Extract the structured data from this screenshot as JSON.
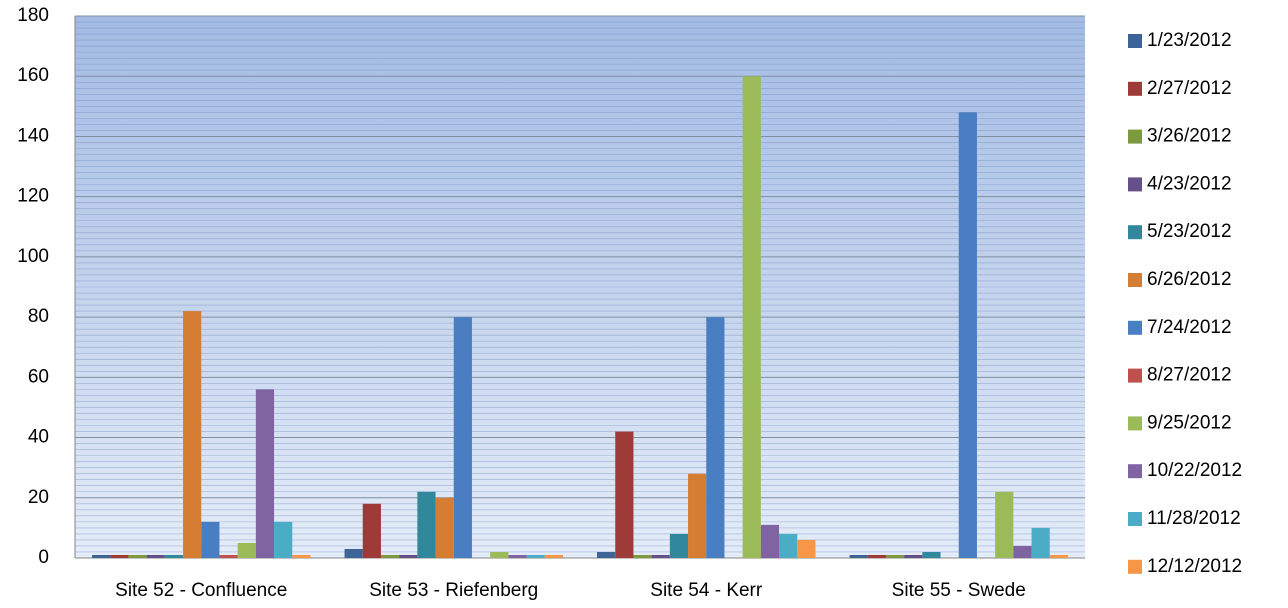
{
  "chart_data": {
    "type": "bar",
    "categories": [
      "Site 52 - Confluence",
      "Site 53 - Riefenberg",
      "Site 54 - Kerr",
      "Site 55 - Swede"
    ],
    "series": [
      {
        "name": "1/23/2012",
        "color": "#3c6496",
        "values": [
          1,
          3,
          2,
          1
        ]
      },
      {
        "name": "2/27/2012",
        "color": "#9e3b38",
        "values": [
          1,
          18,
          42,
          1
        ]
      },
      {
        "name": "3/26/2012",
        "color": "#7d9a3e",
        "values": [
          1,
          1,
          1,
          1
        ]
      },
      {
        "name": "4/23/2012",
        "color": "#66508a",
        "values": [
          1,
          1,
          1,
          1
        ]
      },
      {
        "name": "5/23/2012",
        "color": "#31889c",
        "values": [
          1,
          22,
          8,
          2
        ]
      },
      {
        "name": "6/26/2012",
        "color": "#d57d33",
        "values": [
          82,
          20,
          28,
          0
        ]
      },
      {
        "name": "7/24/2012",
        "color": "#4a7ec2",
        "values": [
          12,
          80,
          80,
          148
        ]
      },
      {
        "name": "8/27/2012",
        "color": "#c0504d",
        "values": [
          1,
          0,
          0,
          0
        ]
      },
      {
        "name": "9/25/2012",
        "color": "#9bbb59",
        "values": [
          5,
          2,
          160,
          22
        ]
      },
      {
        "name": "10/22/2012",
        "color": "#8064a2",
        "values": [
          56,
          1,
          11,
          4
        ]
      },
      {
        "name": "11/28/2012",
        "color": "#4bacc6",
        "values": [
          12,
          1,
          8,
          10
        ]
      },
      {
        "name": "12/12/2012",
        "color": "#f79646",
        "values": [
          1,
          1,
          6,
          1
        ]
      }
    ],
    "ylim": [
      0,
      180
    ],
    "yticks": [
      0,
      20,
      40,
      60,
      80,
      100,
      120,
      140,
      160,
      180
    ],
    "grid": true,
    "minor_grid": true,
    "legend": "right"
  }
}
